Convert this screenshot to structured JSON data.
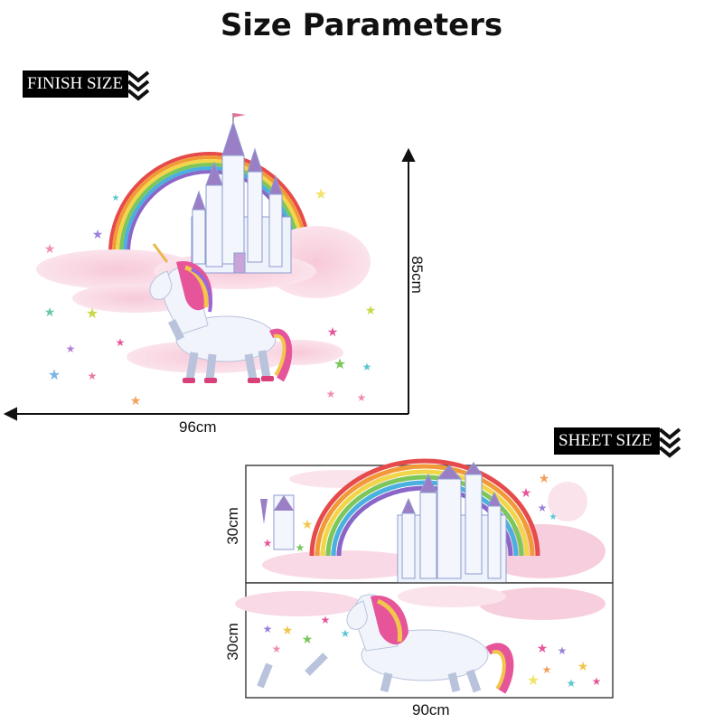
{
  "title": "Size Parameters",
  "finish": {
    "tag": "FINISH SIZE",
    "width": "96cm",
    "height": "85cm"
  },
  "sheet": {
    "tag": "SHEET SIZE",
    "width": "90cm",
    "row_height_top": "30cm",
    "row_height_bottom": "30cm"
  },
  "icons": {
    "tag_chevrons": "double-chevron-down-icon",
    "artwork": "unicorn-castle-rainbow-illustration"
  }
}
